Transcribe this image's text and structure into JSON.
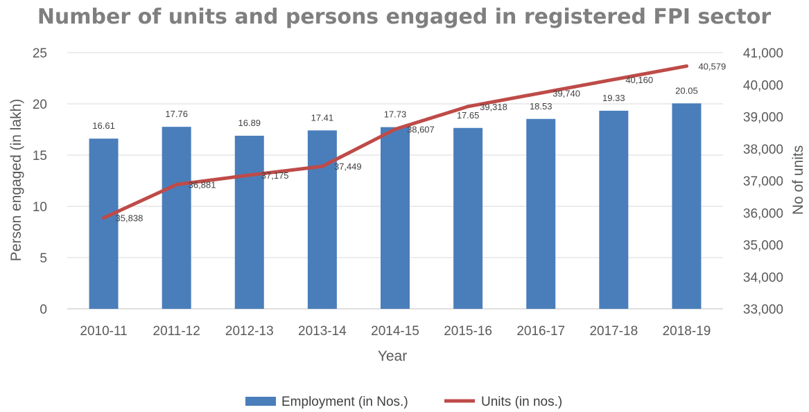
{
  "chart_data": {
    "type": "bar",
    "title": "Number of units and persons engaged in registered FPI sector",
    "xlabel": "Year",
    "ylabel": "Person engaged (in lakh)",
    "y2label": "No of units",
    "categories": [
      "2010-11",
      "2011-12",
      "2012-13",
      "2013-14",
      "2014-15",
      "2015-16",
      "2016-17",
      "2017-18",
      "2018-19"
    ],
    "ylim": [
      0,
      25
    ],
    "yticks": [
      "0",
      "5",
      "10",
      "15",
      "20",
      "25"
    ],
    "y2lim": [
      33000,
      41000
    ],
    "y2ticks": [
      "33,000",
      "34,000",
      "35,000",
      "36,000",
      "37,000",
      "38,000",
      "39,000",
      "40,000",
      "41,000"
    ],
    "grid": true,
    "legend_position": "bottom",
    "series": [
      {
        "name": "Employment (in Nos.)",
        "type": "bar",
        "axis": "left",
        "color": "#4a7ebb",
        "values": [
          16.61,
          17.76,
          16.89,
          17.41,
          17.73,
          17.65,
          18.53,
          19.33,
          20.05
        ],
        "labels": [
          "16.61",
          "17.76",
          "16.89",
          "17.41",
          "17.73",
          "17.65",
          "18.53",
          "19.33",
          "20.05"
        ]
      },
      {
        "name": "Units (in nos.)",
        "type": "line",
        "axis": "right",
        "color": "#be4b48",
        "values": [
          35838,
          36881,
          37175,
          37449,
          38607,
          39318,
          39740,
          40160,
          40579
        ],
        "labels": [
          "35,838",
          "36,881",
          "37,175",
          "37,449",
          "38,607",
          "39,318",
          "39,740",
          "40,160",
          "40,579"
        ]
      }
    ]
  }
}
